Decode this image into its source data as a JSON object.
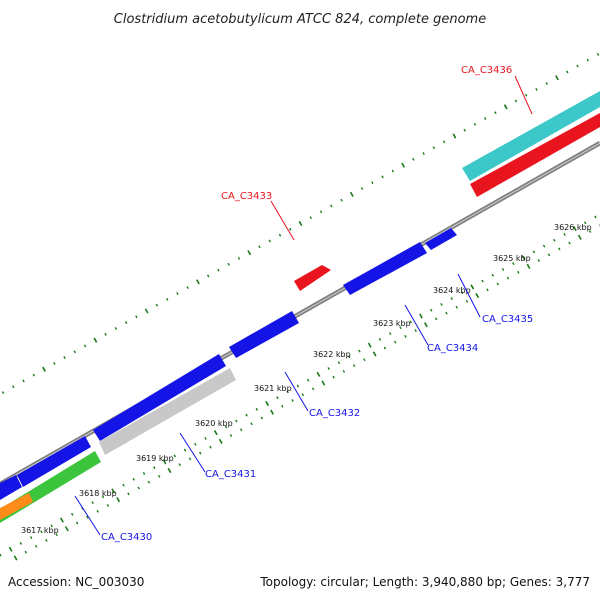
{
  "title": "Clostridium acetobutylicum ATCC 824, complete genome",
  "accession": "Accession: NC_003030",
  "summary": "Topology: circular; Length: 3,940,880 bp; Genes: 3,777",
  "colors": {
    "backbone": "#808080",
    "tick": "#1a7a1a",
    "label_red": "#e8141e",
    "label_blue": "#1414e6",
    "blue_feature": "#1414e6",
    "red_feature": "#e8141e",
    "cyan_feature": "#3cc8c8",
    "green_feature": "#3cc43c",
    "orange_feature": "#ff8c1a",
    "gray_feature": "#c8c8c8"
  },
  "scale_ticks": [
    {
      "label": "3617 kbp"
    },
    {
      "label": "3618 kbp"
    },
    {
      "label": "3619 kbp"
    },
    {
      "label": "3620 kbp"
    },
    {
      "label": "3621 kbp"
    },
    {
      "label": "3622 kbp"
    },
    {
      "label": "3623 kbp"
    },
    {
      "label": "3624 kbp"
    },
    {
      "label": "3625 kbp"
    },
    {
      "label": "3626 kbp"
    }
  ],
  "gene_labels": [
    {
      "name": "CA_C3436",
      "color": "red"
    },
    {
      "name": "CA_C3433",
      "color": "red"
    },
    {
      "name": "CA_C3435",
      "color": "blue"
    },
    {
      "name": "CA_C3434",
      "color": "blue"
    },
    {
      "name": "CA_C3432",
      "color": "blue"
    },
    {
      "name": "CA_C3431",
      "color": "blue"
    },
    {
      "name": "CA_C3430",
      "color": "blue"
    }
  ]
}
